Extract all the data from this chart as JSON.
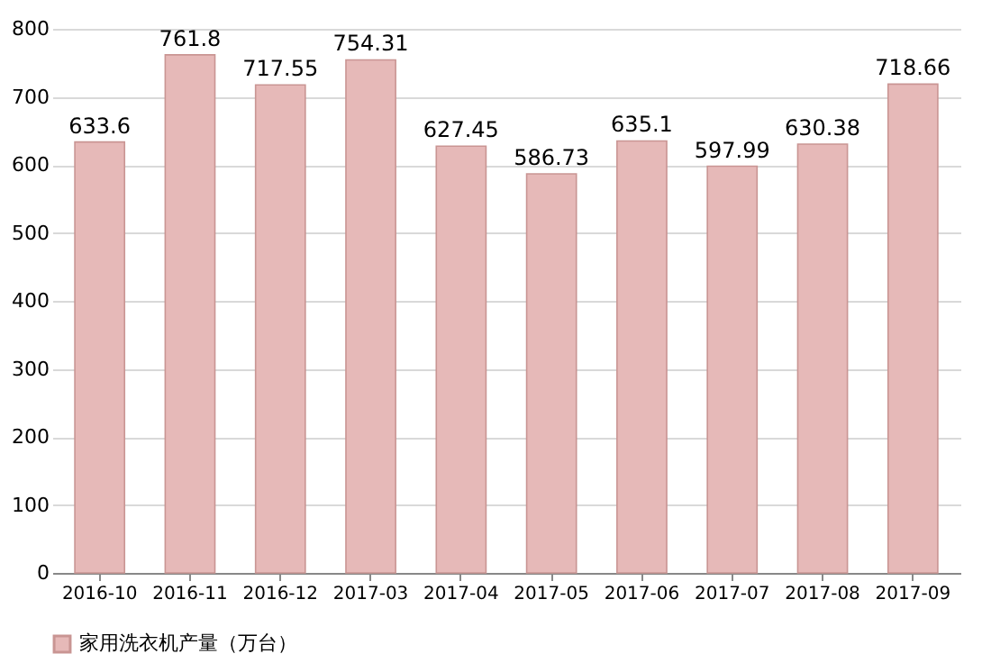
{
  "chart_data": {
    "type": "bar",
    "categories": [
      "2016-10",
      "2016-11",
      "2016-12",
      "2017-03",
      "2017-04",
      "2017-05",
      "2017-06",
      "2017-07",
      "2017-08",
      "2017-09"
    ],
    "series": [
      {
        "name": "家用洗衣机产量（万台）",
        "color": "#e6b9b8",
        "values": [
          633.6,
          761.8,
          717.55,
          754.31,
          627.45,
          586.73,
          635.1,
          597.99,
          630.38,
          718.66
        ]
      }
    ],
    "ylim": [
      0,
      800
    ],
    "yticks": [
      0,
      100,
      200,
      300,
      400,
      500,
      600,
      700,
      800
    ],
    "grid": "y",
    "legend": "bottom left",
    "data_labels": true
  }
}
